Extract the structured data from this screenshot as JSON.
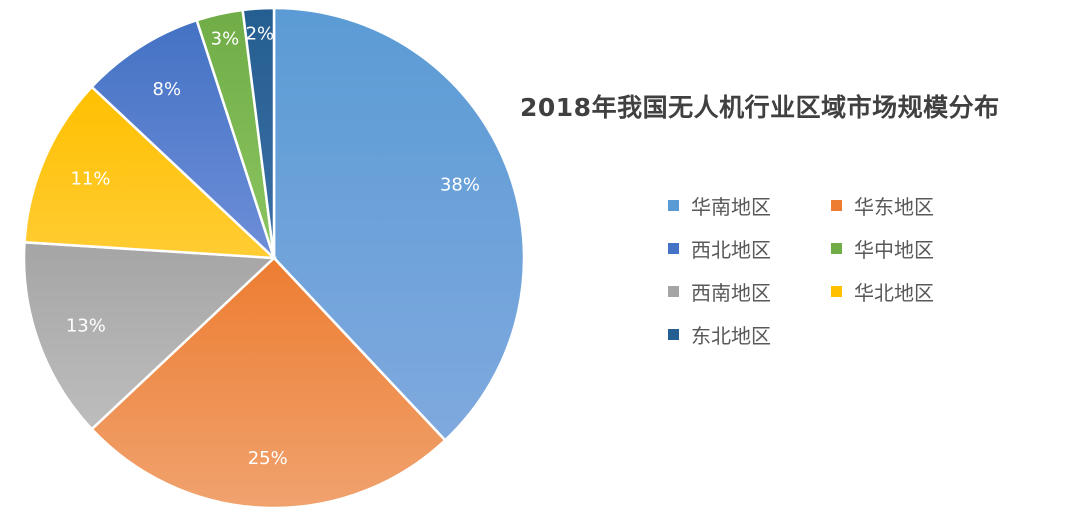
{
  "chart_data": {
    "type": "pie",
    "title": "2018年我国无人机行业区域市场规模分布",
    "legend_placement": "right",
    "slices": [
      {
        "name": "华南地区",
        "value": 38,
        "label": "38%",
        "color": "#7FA9DE",
        "color_dark": "#5B9BD5"
      },
      {
        "name": "华东地区",
        "value": 25,
        "label": "25%",
        "color": "#F0A26E",
        "color_dark": "#ED7D31"
      },
      {
        "name": "西南地区",
        "value": 13,
        "label": "13%",
        "color": "#BDBDBD",
        "color_dark": "#A5A5A5"
      },
      {
        "name": "华北地区",
        "value": 11,
        "label": "11%",
        "color": "#FFCC33",
        "color_dark": "#FFC000"
      },
      {
        "name": "西北地区",
        "value": 8,
        "label": "8%",
        "color": "#6E8ED8",
        "color_dark": "#4472C4"
      },
      {
        "name": "华中地区",
        "value": 3,
        "label": "3%",
        "color": "#8BC560",
        "color_dark": "#70AD47"
      },
      {
        "name": "东北地区",
        "value": 2,
        "label": "2%",
        "color": "#3A6FA5",
        "color_dark": "#255E91"
      }
    ],
    "legend_order": [
      "华南地区",
      "华东地区",
      "西北地区",
      "华中地区",
      "西南地区",
      "华北地区",
      "东北地区"
    ]
  }
}
